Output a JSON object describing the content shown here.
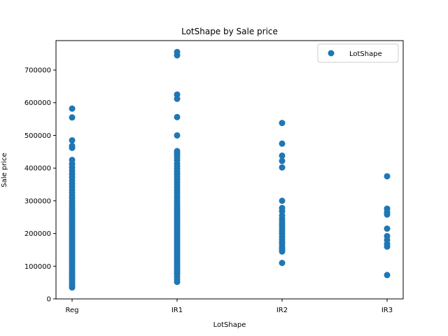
{
  "chart_data": {
    "type": "scatter",
    "title": "LotShape by Sale price",
    "xlabel": "LotShape",
    "ylabel": "Sale price",
    "categories": [
      "Reg",
      "IR1",
      "IR2",
      "IR3"
    ],
    "ylim": [
      0,
      790000
    ],
    "yticks": [
      0,
      100000,
      200000,
      300000,
      400000,
      500000,
      600000,
      700000
    ],
    "ytick_labels": [
      "0",
      "100000",
      "200000",
      "300000",
      "400000",
      "500000",
      "600000",
      "700000"
    ],
    "grid": false,
    "legend": {
      "position": "top-right",
      "entries": [
        "LotShape"
      ]
    },
    "color": "#1f77b4",
    "series": [
      {
        "name": "LotShape",
        "points": [
          {
            "x": "Reg",
            "y": 35000
          },
          {
            "x": "Reg",
            "y": 40000
          },
          {
            "x": "Reg",
            "y": 45000
          },
          {
            "x": "Reg",
            "y": 52000
          },
          {
            "x": "Reg",
            "y": 58000
          },
          {
            "x": "Reg",
            "y": 62000
          },
          {
            "x": "Reg",
            "y": 68000
          },
          {
            "x": "Reg",
            "y": 74000
          },
          {
            "x": "Reg",
            "y": 80000
          },
          {
            "x": "Reg",
            "y": 86000
          },
          {
            "x": "Reg",
            "y": 92000
          },
          {
            "x": "Reg",
            "y": 98000
          },
          {
            "x": "Reg",
            "y": 104000
          },
          {
            "x": "Reg",
            "y": 110000
          },
          {
            "x": "Reg",
            "y": 116000
          },
          {
            "x": "Reg",
            "y": 122000
          },
          {
            "x": "Reg",
            "y": 128000
          },
          {
            "x": "Reg",
            "y": 134000
          },
          {
            "x": "Reg",
            "y": 140000
          },
          {
            "x": "Reg",
            "y": 146000
          },
          {
            "x": "Reg",
            "y": 152000
          },
          {
            "x": "Reg",
            "y": 158000
          },
          {
            "x": "Reg",
            "y": 164000
          },
          {
            "x": "Reg",
            "y": 170000
          },
          {
            "x": "Reg",
            "y": 176000
          },
          {
            "x": "Reg",
            "y": 182000
          },
          {
            "x": "Reg",
            "y": 188000
          },
          {
            "x": "Reg",
            "y": 194000
          },
          {
            "x": "Reg",
            "y": 200000
          },
          {
            "x": "Reg",
            "y": 206000
          },
          {
            "x": "Reg",
            "y": 212000
          },
          {
            "x": "Reg",
            "y": 218000
          },
          {
            "x": "Reg",
            "y": 224000
          },
          {
            "x": "Reg",
            "y": 230000
          },
          {
            "x": "Reg",
            "y": 236000
          },
          {
            "x": "Reg",
            "y": 242000
          },
          {
            "x": "Reg",
            "y": 248000
          },
          {
            "x": "Reg",
            "y": 254000
          },
          {
            "x": "Reg",
            "y": 260000
          },
          {
            "x": "Reg",
            "y": 266000
          },
          {
            "x": "Reg",
            "y": 272000
          },
          {
            "x": "Reg",
            "y": 278000
          },
          {
            "x": "Reg",
            "y": 285000
          },
          {
            "x": "Reg",
            "y": 292000
          },
          {
            "x": "Reg",
            "y": 300000
          },
          {
            "x": "Reg",
            "y": 308000
          },
          {
            "x": "Reg",
            "y": 316000
          },
          {
            "x": "Reg",
            "y": 325000
          },
          {
            "x": "Reg",
            "y": 334000
          },
          {
            "x": "Reg",
            "y": 343000
          },
          {
            "x": "Reg",
            "y": 352000
          },
          {
            "x": "Reg",
            "y": 362000
          },
          {
            "x": "Reg",
            "y": 372000
          },
          {
            "x": "Reg",
            "y": 382000
          },
          {
            "x": "Reg",
            "y": 392000
          },
          {
            "x": "Reg",
            "y": 402000
          },
          {
            "x": "Reg",
            "y": 413000
          },
          {
            "x": "Reg",
            "y": 425000
          },
          {
            "x": "Reg",
            "y": 462000
          },
          {
            "x": "Reg",
            "y": 468000
          },
          {
            "x": "Reg",
            "y": 485000
          },
          {
            "x": "Reg",
            "y": 555000
          },
          {
            "x": "Reg",
            "y": 582000
          },
          {
            "x": "IR1",
            "y": 52000
          },
          {
            "x": "IR1",
            "y": 60000
          },
          {
            "x": "IR1",
            "y": 68000
          },
          {
            "x": "IR1",
            "y": 76000
          },
          {
            "x": "IR1",
            "y": 82000
          },
          {
            "x": "IR1",
            "y": 88000
          },
          {
            "x": "IR1",
            "y": 94000
          },
          {
            "x": "IR1",
            "y": 100000
          },
          {
            "x": "IR1",
            "y": 106000
          },
          {
            "x": "IR1",
            "y": 112000
          },
          {
            "x": "IR1",
            "y": 118000
          },
          {
            "x": "IR1",
            "y": 124000
          },
          {
            "x": "IR1",
            "y": 130000
          },
          {
            "x": "IR1",
            "y": 136000
          },
          {
            "x": "IR1",
            "y": 142000
          },
          {
            "x": "IR1",
            "y": 148000
          },
          {
            "x": "IR1",
            "y": 154000
          },
          {
            "x": "IR1",
            "y": 160000
          },
          {
            "x": "IR1",
            "y": 166000
          },
          {
            "x": "IR1",
            "y": 172000
          },
          {
            "x": "IR1",
            "y": 178000
          },
          {
            "x": "IR1",
            "y": 184000
          },
          {
            "x": "IR1",
            "y": 190000
          },
          {
            "x": "IR1",
            "y": 196000
          },
          {
            "x": "IR1",
            "y": 202000
          },
          {
            "x": "IR1",
            "y": 208000
          },
          {
            "x": "IR1",
            "y": 214000
          },
          {
            "x": "IR1",
            "y": 220000
          },
          {
            "x": "IR1",
            "y": 226000
          },
          {
            "x": "IR1",
            "y": 232000
          },
          {
            "x": "IR1",
            "y": 238000
          },
          {
            "x": "IR1",
            "y": 244000
          },
          {
            "x": "IR1",
            "y": 250000
          },
          {
            "x": "IR1",
            "y": 256000
          },
          {
            "x": "IR1",
            "y": 262000
          },
          {
            "x": "IR1",
            "y": 268000
          },
          {
            "x": "IR1",
            "y": 274000
          },
          {
            "x": "IR1",
            "y": 280000
          },
          {
            "x": "IR1",
            "y": 287000
          },
          {
            "x": "IR1",
            "y": 294000
          },
          {
            "x": "IR1",
            "y": 302000
          },
          {
            "x": "IR1",
            "y": 310000
          },
          {
            "x": "IR1",
            "y": 318000
          },
          {
            "x": "IR1",
            "y": 326000
          },
          {
            "x": "IR1",
            "y": 334000
          },
          {
            "x": "IR1",
            "y": 342000
          },
          {
            "x": "IR1",
            "y": 350000
          },
          {
            "x": "IR1",
            "y": 358000
          },
          {
            "x": "IR1",
            "y": 366000
          },
          {
            "x": "IR1",
            "y": 374000
          },
          {
            "x": "IR1",
            "y": 382000
          },
          {
            "x": "IR1",
            "y": 390000
          },
          {
            "x": "IR1",
            "y": 398000
          },
          {
            "x": "IR1",
            "y": 406000
          },
          {
            "x": "IR1",
            "y": 414000
          },
          {
            "x": "IR1",
            "y": 424000
          },
          {
            "x": "IR1",
            "y": 432000
          },
          {
            "x": "IR1",
            "y": 440000
          },
          {
            "x": "IR1",
            "y": 446000
          },
          {
            "x": "IR1",
            "y": 452000
          },
          {
            "x": "IR1",
            "y": 500000
          },
          {
            "x": "IR1",
            "y": 556000
          },
          {
            "x": "IR1",
            "y": 612000
          },
          {
            "x": "IR1",
            "y": 625000
          },
          {
            "x": "IR1",
            "y": 745000
          },
          {
            "x": "IR1",
            "y": 755000
          },
          {
            "x": "IR2",
            "y": 110000
          },
          {
            "x": "IR2",
            "y": 145000
          },
          {
            "x": "IR2",
            "y": 150000
          },
          {
            "x": "IR2",
            "y": 155000
          },
          {
            "x": "IR2",
            "y": 160000
          },
          {
            "x": "IR2",
            "y": 168000
          },
          {
            "x": "IR2",
            "y": 175000
          },
          {
            "x": "IR2",
            "y": 182000
          },
          {
            "x": "IR2",
            "y": 190000
          },
          {
            "x": "IR2",
            "y": 198000
          },
          {
            "x": "IR2",
            "y": 205000
          },
          {
            "x": "IR2",
            "y": 212000
          },
          {
            "x": "IR2",
            "y": 220000
          },
          {
            "x": "IR2",
            "y": 228000
          },
          {
            "x": "IR2",
            "y": 236000
          },
          {
            "x": "IR2",
            "y": 245000
          },
          {
            "x": "IR2",
            "y": 255000
          },
          {
            "x": "IR2",
            "y": 268000
          },
          {
            "x": "IR2",
            "y": 278000
          },
          {
            "x": "IR2",
            "y": 300000
          },
          {
            "x": "IR2",
            "y": 402000
          },
          {
            "x": "IR2",
            "y": 422000
          },
          {
            "x": "IR2",
            "y": 438000
          },
          {
            "x": "IR2",
            "y": 475000
          },
          {
            "x": "IR2",
            "y": 538000
          },
          {
            "x": "IR3",
            "y": 73000
          },
          {
            "x": "IR3",
            "y": 160000
          },
          {
            "x": "IR3",
            "y": 168000
          },
          {
            "x": "IR3",
            "y": 180000
          },
          {
            "x": "IR3",
            "y": 192000
          },
          {
            "x": "IR3",
            "y": 215000
          },
          {
            "x": "IR3",
            "y": 258000
          },
          {
            "x": "IR3",
            "y": 265000
          },
          {
            "x": "IR3",
            "y": 276000
          },
          {
            "x": "IR3",
            "y": 375000
          }
        ]
      }
    ]
  }
}
